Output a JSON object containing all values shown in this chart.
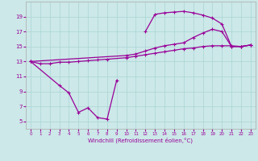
{
  "xlabel": "Windchill (Refroidissement éolien,°C)",
  "background_color": "#cce8e8",
  "line_color": "#990099",
  "grid_color": "#aad4d4",
  "ylim": [
    4,
    21
  ],
  "yticks": [
    5,
    7,
    9,
    11,
    13,
    15,
    17,
    19
  ],
  "xlim": [
    -0.5,
    23.5
  ],
  "xticks": [
    0,
    1,
    2,
    3,
    4,
    5,
    6,
    7,
    8,
    9,
    10,
    11,
    12,
    13,
    14,
    15,
    16,
    17,
    18,
    19,
    20,
    21,
    22,
    23
  ],
  "line1_x": [
    0,
    1,
    2,
    3,
    4,
    5,
    6,
    7,
    8,
    10,
    11,
    12,
    13,
    14,
    15,
    16,
    17,
    18,
    19,
    20,
    21,
    22,
    23
  ],
  "line1_y": [
    13.0,
    12.7,
    12.7,
    12.9,
    12.9,
    13.0,
    13.1,
    13.2,
    13.3,
    13.5,
    13.7,
    13.9,
    14.1,
    14.3,
    14.5,
    14.7,
    14.8,
    15.0,
    15.1,
    15.1,
    15.1,
    15.0,
    15.2
  ],
  "line2_x": [
    0,
    10,
    11,
    12,
    13,
    14,
    15,
    16,
    17,
    18,
    19,
    20,
    21,
    22,
    23
  ],
  "line2_y": [
    13.0,
    13.8,
    14.0,
    14.4,
    14.8,
    15.1,
    15.3,
    15.5,
    16.2,
    16.8,
    17.3,
    17.0,
    15.0,
    15.0,
    15.2
  ],
  "line3_x": [
    12,
    13,
    14,
    15,
    16,
    17,
    18,
    19,
    20,
    21,
    22,
    23
  ],
  "line3_y": [
    17.0,
    19.3,
    19.5,
    19.6,
    19.7,
    19.5,
    19.2,
    18.8,
    18.0,
    15.0,
    15.0,
    15.2
  ],
  "line4_x": [
    0,
    3,
    4,
    5,
    6,
    7,
    8,
    9
  ],
  "line4_y": [
    13.0,
    9.8,
    8.8,
    6.2,
    6.8,
    5.5,
    5.3,
    10.5
  ]
}
